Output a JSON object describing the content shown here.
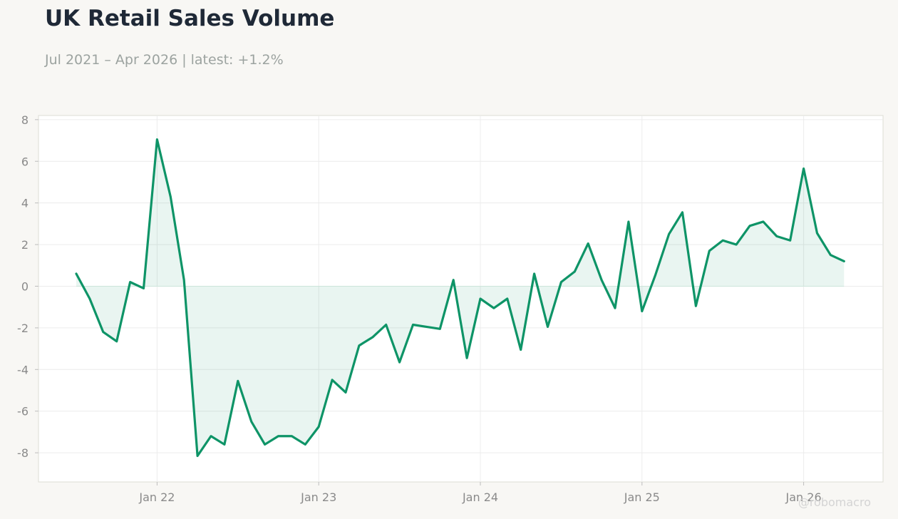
{
  "title": "UK Retail Sales Volume",
  "subtitle": "Jul 2021 – Apr 2026 | latest: +1.2%",
  "watermark": "@robomacro",
  "colors": {
    "line": "#0e9467",
    "fill": "#0e9467",
    "grid": "#ececec",
    "axis_text": "#8a8a8a",
    "plot_bg": "#ffffff",
    "page_bg": "#f8f7f4"
  },
  "chart_data": {
    "type": "area",
    "x_start": "2021-07",
    "frequency": "monthly",
    "x_ticks": [
      "Jan 22",
      "Jan 23",
      "Jan 24",
      "Jan 25",
      "Jan 26"
    ],
    "y_ticks": [
      8,
      6,
      4,
      2,
      0,
      -2,
      -4,
      -6,
      -8
    ],
    "ylim": [
      -9.4,
      8.2
    ],
    "grid": true,
    "series": [
      {
        "values": [
          0.6,
          -0.6,
          -2.2,
          -2.65,
          0.2,
          -0.1,
          7.05,
          4.3,
          0.3,
          -8.15,
          -7.2,
          -7.6,
          -4.55,
          -6.5,
          -7.6,
          -7.2,
          -7.2,
          -7.6,
          -6.75,
          -4.5,
          -5.1,
          -2.85,
          -2.45,
          -1.85,
          -3.65,
          -1.85,
          -1.95,
          -2.05,
          0.3,
          -3.45,
          -0.6,
          -1.05,
          -0.6,
          -3.05,
          0.6,
          -1.95,
          0.2,
          0.7,
          2.05,
          0.3,
          -1.05,
          3.1,
          -1.2,
          0.55,
          2.5,
          3.55,
          -0.95,
          1.7,
          2.2,
          2.0,
          2.9,
          3.1,
          2.4,
          2.2,
          5.65,
          2.55,
          1.5,
          1.2
        ]
      }
    ]
  }
}
